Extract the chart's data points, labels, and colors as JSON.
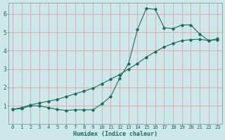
{
  "line1_x": [
    0,
    1,
    2,
    3,
    4,
    5,
    6,
    7,
    8,
    9,
    10,
    11,
    12,
    13,
    14,
    15,
    16,
    17,
    18,
    19,
    20,
    21,
    22,
    23
  ],
  "line1_y": [
    0.8,
    0.85,
    1.0,
    1.0,
    0.9,
    0.8,
    0.75,
    0.78,
    0.78,
    0.78,
    1.1,
    1.5,
    2.5,
    3.3,
    5.15,
    6.3,
    6.25,
    5.25,
    5.2,
    5.4,
    5.4,
    4.9,
    4.55,
    4.6
  ],
  "line2_x": [
    0,
    1,
    2,
    3,
    4,
    5,
    6,
    7,
    8,
    9,
    10,
    11,
    12,
    13,
    14,
    15,
    16,
    17,
    18,
    19,
    20,
    21,
    22,
    23
  ],
  "line2_y": [
    0.8,
    0.9,
    1.05,
    1.15,
    1.25,
    1.35,
    1.5,
    1.65,
    1.8,
    1.95,
    2.2,
    2.45,
    2.7,
    3.0,
    3.3,
    3.65,
    3.95,
    4.2,
    4.4,
    4.55,
    4.6,
    4.62,
    4.55,
    4.65
  ],
  "line_color": "#1a6b5a",
  "bg_color": "#cce8ea",
  "grid_color": "#e8a0a0",
  "xlabel": "Humidex (Indice chaleur)",
  "xlim": [
    -0.5,
    23.5
  ],
  "ylim": [
    0,
    6.6
  ],
  "yticks": [
    1,
    2,
    3,
    4,
    5,
    6
  ],
  "xticks": [
    0,
    1,
    2,
    3,
    4,
    5,
    6,
    7,
    8,
    9,
    10,
    11,
    12,
    13,
    14,
    15,
    16,
    17,
    18,
    19,
    20,
    21,
    22,
    23
  ],
  "xlabel_fontsize": 6.0,
  "tick_fontsize": 5.2
}
